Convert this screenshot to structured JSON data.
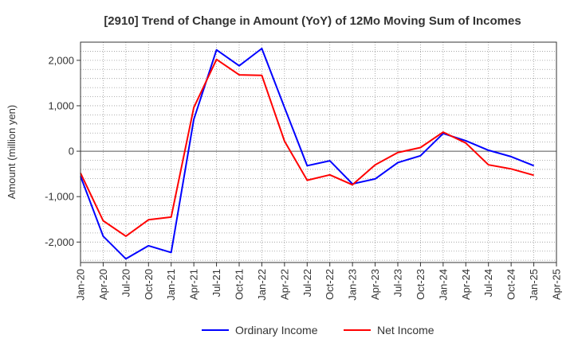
{
  "chart_data": {
    "type": "line",
    "title": "[2910]  Trend of Change in Amount (YoY) of 12Mo Moving Sum of Incomes",
    "ylabel": "Amount (million yen)",
    "xlabel": "",
    "ylim": [
      -2450,
      2400
    ],
    "yticks": [
      -2000,
      -1000,
      0,
      1000,
      2000
    ],
    "ytick_labels": [
      "-2,000",
      "-1,000",
      "0",
      "1,000",
      "2,000"
    ],
    "grid": true,
    "legend_position": "bottom",
    "categories": [
      "Jan-20",
      "Apr-20",
      "Jul-20",
      "Oct-20",
      "Jan-21",
      "Apr-21",
      "Jul-21",
      "Oct-21",
      "Jan-22",
      "Apr-22",
      "Jul-22",
      "Oct-22",
      "Jan-23",
      "Apr-23",
      "Jul-23",
      "Oct-23",
      "Jan-24",
      "Apr-24",
      "Jul-24",
      "Oct-24",
      "Jan-25",
      "Apr-25"
    ],
    "series": [
      {
        "name": "Ordinary Income",
        "color": "#0000ff",
        "values": [
          -550,
          -1870,
          -2370,
          -2080,
          -2230,
          700,
          2230,
          1880,
          2260,
          960,
          -320,
          -210,
          -720,
          -610,
          -250,
          -100,
          390,
          230,
          20,
          -120,
          -320,
          null
        ]
      },
      {
        "name": "Net Income",
        "color": "#ff0000",
        "values": [
          -480,
          -1530,
          -1870,
          -1510,
          -1450,
          960,
          2020,
          1680,
          1670,
          220,
          -640,
          -520,
          -740,
          -300,
          -30,
          80,
          420,
          180,
          -300,
          -390,
          -530,
          null
        ]
      }
    ]
  }
}
